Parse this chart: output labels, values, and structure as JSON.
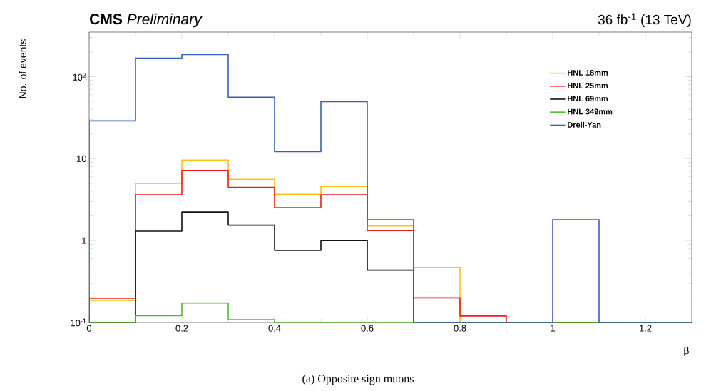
{
  "chart_data": {
    "type": "histogram",
    "title": "**CMS** *Preliminary*",
    "subtitle": "36 fb$^{-1}$ (13 TeV)",
    "xlabel": "β",
    "ylabel": "No. of events",
    "annotations": [
      "(a) Opposite sign muons"
    ],
    "bins": [
      0,
      0.1,
      0.2,
      0.3,
      0.4,
      0.5,
      0.6,
      0.7,
      0.8,
      0.9,
      1.0,
      1.1,
      1.2,
      1.3
    ],
    "series": [
      {
        "name": "HNL 18mm",
        "color": "#ffc20e",
        "values": [
          0.186,
          5.0,
          9.6,
          5.6,
          3.67,
          4.58,
          1.51,
          0.47,
          null,
          null,
          null,
          null,
          null
        ]
      },
      {
        "name": "HNL 25mm",
        "color": "#f21b1b",
        "values": [
          0.198,
          3.62,
          7.19,
          4.46,
          2.52,
          3.62,
          1.32,
          0.2,
          0.12,
          null,
          null,
          null,
          null
        ]
      },
      {
        "name": "HNL 69mm",
        "color": "#111111",
        "values": [
          null,
          1.3,
          2.23,
          1.54,
          0.76,
          1.0,
          0.435,
          null,
          null,
          null,
          null,
          null,
          null
        ]
      },
      {
        "name": "HNL 349mm",
        "color": "#4cbb2a",
        "values": [
          null,
          0.121,
          0.173,
          0.108,
          null,
          null,
          null,
          null,
          null,
          null,
          null,
          null,
          null
        ]
      },
      {
        "name": "Drell-Yan",
        "color": "#3b5db5",
        "values": [
          28.9,
          168,
          186,
          56,
          12.2,
          49.6,
          1.79,
          null,
          null,
          null,
          1.79,
          null,
          null
        ]
      }
    ],
    "log": "y",
    "grid": false,
    "legend": "top right",
    "xlim": [
      0,
      1.3
    ],
    "ylim": [
      0.1,
      350
    ],
    "xticks": [
      0,
      0.2,
      0.4,
      0.6,
      0.8,
      1,
      1.2
    ],
    "yticks": [
      {
        "value": 0.1,
        "label": "10$^{-1}$"
      },
      1,
      10,
      {
        "value": 100,
        "label": "10$^{2}$"
      }
    ]
  }
}
